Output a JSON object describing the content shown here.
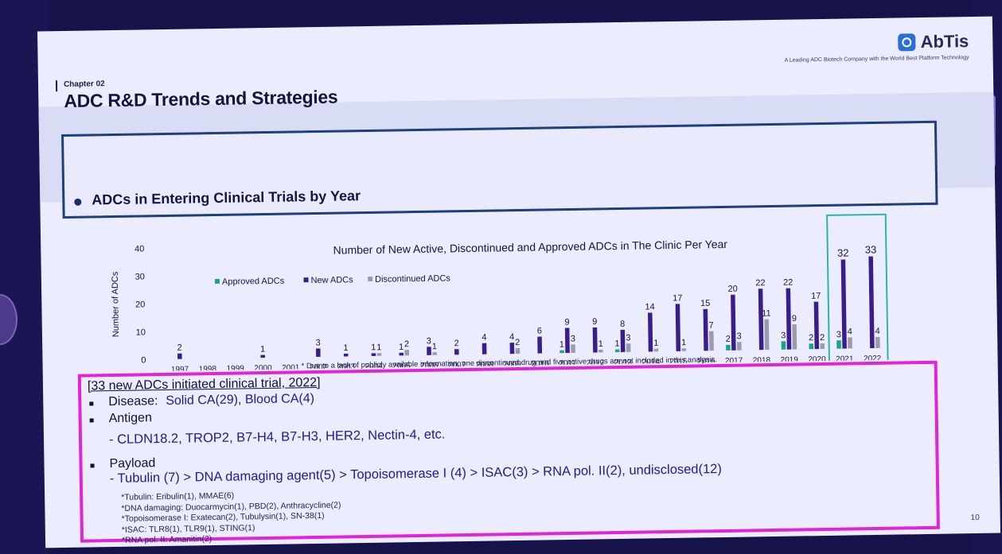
{
  "header": {
    "chapter": "Chapter 02",
    "title": "ADC R&D Trends and Strategies",
    "logo_text": "AbTis",
    "tagline": "A Leading ADC Biotech Company with the World Best Platform Technology"
  },
  "section": {
    "title": "ADCs in Entering Clinical Trials by Year"
  },
  "chart_data": {
    "type": "bar",
    "title": "Number of New Active, Discontinued and Approved ADCs in The Clinic Per Year",
    "ylabel": "Number of ADCs",
    "xlabel": "",
    "ylim": [
      0,
      40
    ],
    "yticks": [
      0,
      10,
      20,
      30,
      40
    ],
    "legend_position": "top-left",
    "categories": [
      "1997",
      "1998",
      "1999",
      "2000",
      "2001",
      "2002",
      "2003",
      "2004",
      "2005",
      "2006",
      "2007",
      "2008",
      "2009",
      "2010",
      "2011",
      "2012",
      "2013",
      "2014",
      "2015",
      "2016",
      "2017",
      "2018",
      "2019",
      "2020",
      "2021",
      "2022"
    ],
    "series": [
      {
        "name": "Approved ADCs",
        "color": "#17a589",
        "values": [
          0,
          0,
          0,
          0,
          0,
          0,
          0,
          0,
          0,
          0,
          0,
          0,
          0,
          0,
          1,
          0,
          1,
          0,
          0,
          0,
          2,
          0,
          3,
          2,
          3,
          0
        ]
      },
      {
        "name": "New ADCs",
        "color": "#3b1c8c",
        "values": [
          2,
          0,
          0,
          1,
          0,
          3,
          1,
          1,
          1,
          3,
          2,
          4,
          4,
          6,
          9,
          9,
          8,
          14,
          17,
          15,
          20,
          22,
          22,
          17,
          32,
          33
        ]
      },
      {
        "name": "Discontinued ADCs",
        "color": "#9a9ab0",
        "values": [
          0,
          0,
          0,
          0,
          0,
          0,
          0,
          1,
          2,
          1,
          0,
          0,
          2,
          0,
          3,
          1,
          3,
          1,
          1,
          7,
          3,
          11,
          9,
          2,
          4,
          4
        ]
      }
    ],
    "highlight_categories": [
      "2021",
      "2022"
    ],
    "footnote": "* Due to a lack of publicly available information, one discontinued drug and five active drugs are not included in this analysis."
  },
  "details": {
    "heading": "[33 new ADCs initiated clinical trial, 2022]",
    "disease_label": "Disease:",
    "disease_value": "Solid CA(29), Blood CA(4)",
    "antigen_label": "Antigen",
    "antigen_value": "- CLDN18.2, TROP2, B7-H4, B7-H3, HER2, Nectin-4, etc.",
    "payload_label": "Payload",
    "payload_value": "- Tubulin (7) > DNA damaging agent(5) > Topoisomerase I (4) > ISAC(3) > RNA pol. II(2), undisclosed(12)",
    "notes": [
      "*Tubulin: Eribulin(1), MMAE(6)",
      "*DNA damaging: Duocarmycin(1), PBD(2), Anthracycline(2)",
      "*Topoisomerase I: Exatecan(2), Tubulysin(1), SN-38(1)",
      "*ISAC: TLR8(1), TLR9(1), STING(1)",
      "*RNA pol. II: Amanitin(2)"
    ]
  },
  "page_number": "10"
}
